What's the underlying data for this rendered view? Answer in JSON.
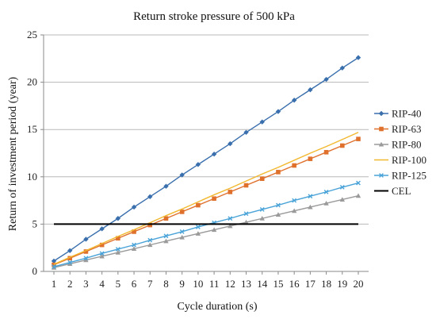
{
  "chart_data": {
    "type": "line",
    "title": "Return stroke pressure of 500 kPa",
    "xlabel": "Cycle duration (s)",
    "ylabel": "Return of investment period (year)",
    "x": [
      1,
      2,
      3,
      4,
      5,
      6,
      7,
      8,
      9,
      10,
      11,
      12,
      13,
      14,
      15,
      16,
      17,
      18,
      19,
      20
    ],
    "xlim": [
      1,
      20
    ],
    "ylim": [
      0,
      25
    ],
    "yticks": [
      0,
      5,
      10,
      15,
      20,
      25
    ],
    "grid": "horizontal",
    "legend_position": "right",
    "series": [
      {
        "name": "RIP-40",
        "color": "#3a6fad",
        "marker": "diamond",
        "values": [
          1.1,
          2.2,
          3.4,
          4.5,
          5.6,
          6.8,
          7.9,
          9.0,
          10.2,
          11.3,
          12.4,
          13.5,
          14.7,
          15.8,
          16.9,
          18.1,
          19.2,
          20.3,
          21.5,
          22.6
        ]
      },
      {
        "name": "RIP-63",
        "color": "#e0712d",
        "marker": "square",
        "values": [
          0.7,
          1.4,
          2.1,
          2.8,
          3.5,
          4.2,
          4.9,
          5.6,
          6.3,
          7.0,
          7.7,
          8.4,
          9.1,
          9.8,
          10.5,
          11.2,
          11.9,
          12.6,
          13.3,
          14.0
        ]
      },
      {
        "name": "RIP-80",
        "color": "#9a9a9a",
        "marker": "triangle",
        "values": [
          0.4,
          0.8,
          1.2,
          1.6,
          2.0,
          2.4,
          2.8,
          3.2,
          3.6,
          4.0,
          4.4,
          4.8,
          5.2,
          5.6,
          6.0,
          6.4,
          6.8,
          7.2,
          7.6,
          8.0
        ]
      },
      {
        "name": "RIP-100",
        "color": "#f2b82e",
        "marker": "none",
        "values": [
          0.75,
          1.5,
          2.2,
          2.95,
          3.7,
          4.4,
          5.15,
          5.9,
          6.6,
          7.35,
          8.1,
          8.8,
          9.55,
          10.3,
          11.0,
          11.75,
          12.5,
          13.2,
          13.95,
          14.7
        ]
      },
      {
        "name": "RIP-125",
        "color": "#4aa3d8",
        "marker": "x",
        "values": [
          0.5,
          0.95,
          1.4,
          1.9,
          2.35,
          2.8,
          3.3,
          3.75,
          4.2,
          4.7,
          5.15,
          5.6,
          6.1,
          6.55,
          7.0,
          7.5,
          7.95,
          8.4,
          8.9,
          9.35
        ]
      },
      {
        "name": "CEL",
        "color": "#000000",
        "marker": "none",
        "values": [
          5,
          5,
          5,
          5,
          5,
          5,
          5,
          5,
          5,
          5,
          5,
          5,
          5,
          5,
          5,
          5,
          5,
          5,
          5,
          5
        ]
      }
    ]
  }
}
